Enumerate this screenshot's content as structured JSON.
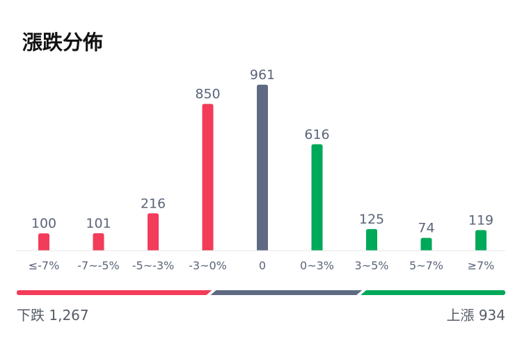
{
  "title": "漲跌分佈",
  "chart_data": {
    "type": "bar",
    "categories": [
      "≤-7%",
      "-7~-5%",
      "-5~-3%",
      "-3~0%",
      "0",
      "0~3%",
      "3~5%",
      "5~7%",
      "≥7%"
    ],
    "values": [
      100,
      101,
      216,
      850,
      961,
      616,
      125,
      74,
      119
    ],
    "value_labels": [
      "100",
      "101",
      "216",
      "850",
      "961",
      "616",
      "125",
      "74",
      "119"
    ],
    "bar_color_keys": [
      "down",
      "down",
      "down",
      "down",
      "flat",
      "up",
      "up",
      "up",
      "up"
    ],
    "ylim": [
      0,
      961
    ],
    "grid": false,
    "colors": {
      "down": "#f23c5a",
      "flat": "#5f6a82",
      "up": "#00a85a"
    }
  },
  "summary": {
    "down_label": "下跌 1,267",
    "up_label": "上漲 934",
    "down_count": 1267,
    "flat_count": 961,
    "up_count": 934
  }
}
